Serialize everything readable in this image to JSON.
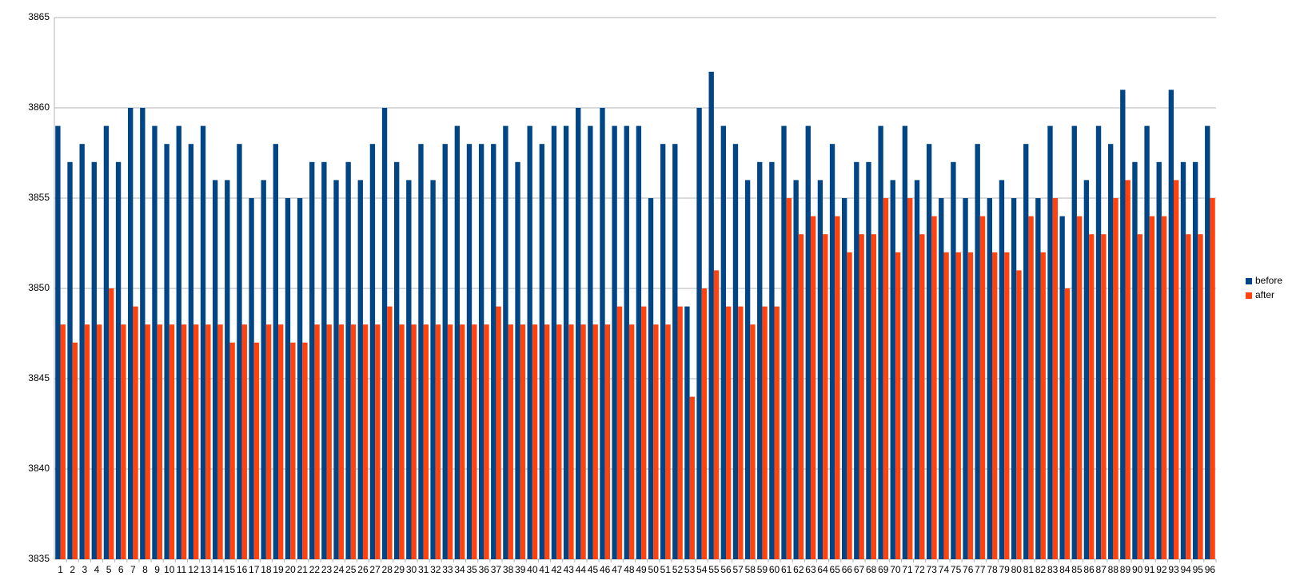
{
  "chart_data": {
    "type": "bar",
    "categories": [
      "1",
      "2",
      "3",
      "4",
      "5",
      "6",
      "7",
      "8",
      "9",
      "10",
      "11",
      "12",
      "13",
      "14",
      "15",
      "16",
      "17",
      "18",
      "19",
      "20",
      "21",
      "22",
      "23",
      "24",
      "25",
      "26",
      "27",
      "28",
      "29",
      "30",
      "31",
      "32",
      "33",
      "34",
      "35",
      "36",
      "37",
      "38",
      "39",
      "40",
      "41",
      "42",
      "43",
      "44",
      "45",
      "46",
      "47",
      "48",
      "49",
      "50",
      "51",
      "52",
      "53",
      "54",
      "55",
      "56",
      "57",
      "58",
      "59",
      "60",
      "61",
      "62",
      "63",
      "64",
      "65",
      "66",
      "67",
      "68",
      "69",
      "70",
      "71",
      "72",
      "73",
      "74",
      "75",
      "76",
      "77",
      "78",
      "79",
      "80",
      "81",
      "82",
      "83",
      "84",
      "85",
      "86",
      "87",
      "88",
      "89",
      "90",
      "91",
      "92",
      "93",
      "94",
      "95",
      "96"
    ],
    "series": [
      {
        "name": "before",
        "color": "#004586",
        "values": [
          3859,
          3857,
          3858,
          3857,
          3859,
          3857,
          3860,
          3860,
          3859,
          3858,
          3859,
          3858,
          3859,
          3856,
          3856,
          3858,
          3855,
          3856,
          3858,
          3855,
          3855,
          3857,
          3857,
          3856,
          3857,
          3856,
          3858,
          3860,
          3857,
          3856,
          3858,
          3856,
          3858,
          3859,
          3858,
          3858,
          3858,
          3859,
          3857,
          3859,
          3858,
          3859,
          3859,
          3860,
          3859,
          3860,
          3859,
          3859,
          3859,
          3855,
          3858,
          3858,
          3849,
          3860,
          3862,
          3859,
          3858,
          3856,
          3857,
          3857,
          3859,
          3856,
          3859,
          3856,
          3858,
          3855,
          3857,
          3857,
          3859,
          3856,
          3859,
          3856,
          3858,
          3855,
          3857,
          3855,
          3858,
          3855,
          3856,
          3855,
          3858,
          3855,
          3859,
          3854,
          3859,
          3856,
          3859,
          3858,
          3861,
          3857,
          3859,
          3857,
          3861,
          3857,
          3857,
          3859
        ]
      },
      {
        "name": "after",
        "color": "#ff420e",
        "values": [
          3848,
          3847,
          3848,
          3848,
          3850,
          3848,
          3849,
          3848,
          3848,
          3848,
          3848,
          3848,
          3848,
          3848,
          3847,
          3848,
          3847,
          3848,
          3848,
          3847,
          3847,
          3848,
          3848,
          3848,
          3848,
          3848,
          3848,
          3849,
          3848,
          3848,
          3848,
          3848,
          3848,
          3848,
          3848,
          3848,
          3849,
          3848,
          3848,
          3848,
          3848,
          3848,
          3848,
          3848,
          3848,
          3848,
          3849,
          3848,
          3849,
          3848,
          3848,
          3849,
          3844,
          3850,
          3851,
          3849,
          3849,
          3848,
          3849,
          3849,
          3855,
          3853,
          3854,
          3853,
          3854,
          3852,
          3853,
          3853,
          3855,
          3852,
          3855,
          3853,
          3854,
          3852,
          3852,
          3852,
          3854,
          3852,
          3852,
          3851,
          3854,
          3852,
          3855,
          3850,
          3854,
          3853,
          3853,
          3855,
          3856,
          3853,
          3854,
          3854,
          3856,
          3853,
          3853,
          3855
        ]
      }
    ],
    "ylim": [
      3835,
      3865
    ],
    "yticks": [
      3835,
      3840,
      3845,
      3850,
      3855,
      3860,
      3865
    ],
    "grid": true,
    "legend": "right"
  }
}
